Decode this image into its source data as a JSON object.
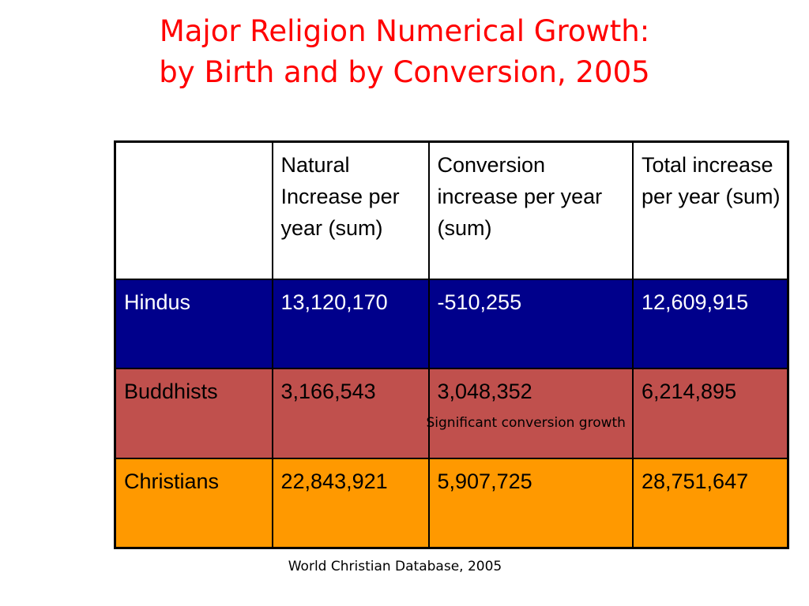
{
  "title": {
    "line1": "Major Religion Numerical Growth:",
    "line2": "by Birth and by Conversion, 2005"
  },
  "table": {
    "headers": [
      "",
      "Natural Increase per year (sum)",
      "Conversion increase per year (sum)",
      "Total increase per year (sum)"
    ],
    "rows": [
      {
        "religion": "Hindus",
        "natural": "13,120,170",
        "conversion": "-510,255",
        "total": "12,609,915"
      },
      {
        "religion": "Buddhists",
        "natural": "3,166,543",
        "conversion": "3,048,352",
        "total": "6,214,895",
        "note": "Significant conversion growth"
      },
      {
        "religion": "Christians",
        "natural": "22,843,921",
        "conversion": "5,907,725",
        "total": "28,751,647"
      }
    ],
    "colors": {
      "hindus_bg": "#00008b",
      "buddhists_bg": "#c0504d",
      "christians_bg": "#ff9900",
      "title": "#ff0000"
    }
  },
  "source": "World Christian Database, 2005"
}
